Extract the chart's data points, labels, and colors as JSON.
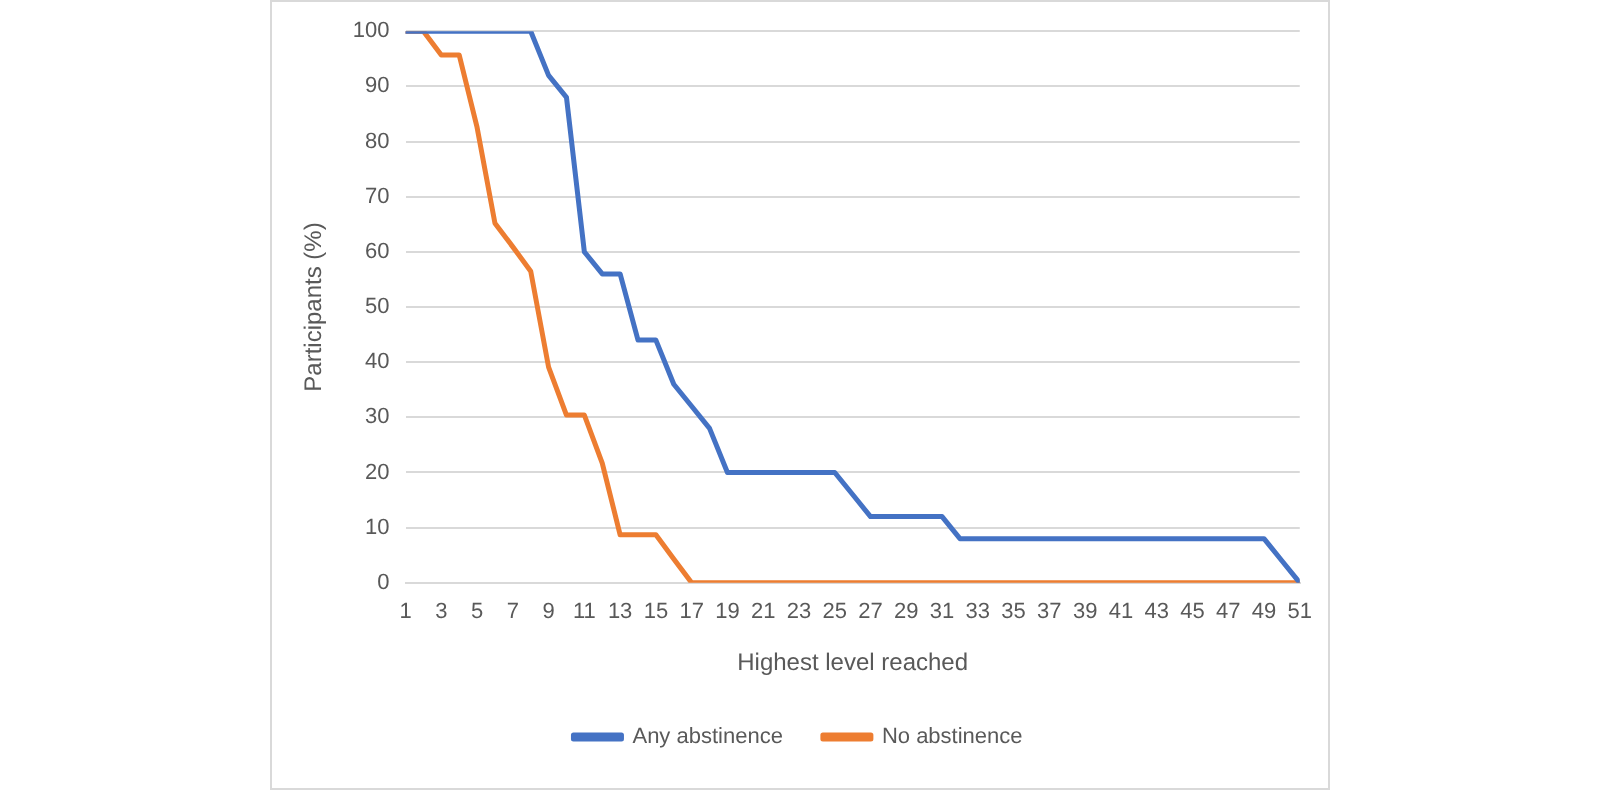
{
  "chart_data": {
    "type": "line",
    "xlabel": "Highest level reached",
    "ylabel": "Participants (%)",
    "x": [
      1,
      2,
      3,
      4,
      5,
      6,
      7,
      8,
      9,
      10,
      11,
      12,
      13,
      14,
      15,
      16,
      17,
      18,
      19,
      20,
      21,
      22,
      23,
      24,
      25,
      26,
      27,
      28,
      29,
      30,
      31,
      32,
      33,
      34,
      35,
      36,
      37,
      38,
      39,
      40,
      41,
      42,
      43,
      44,
      45,
      46,
      47,
      48,
      49,
      50,
      51
    ],
    "xlim": [
      1,
      51
    ],
    "xticks": [
      1,
      3,
      5,
      7,
      9,
      11,
      13,
      15,
      17,
      19,
      21,
      23,
      25,
      27,
      29,
      31,
      33,
      35,
      37,
      39,
      41,
      43,
      45,
      47,
      49,
      51
    ],
    "series": [
      {
        "name": "Any abstinence",
        "color": "#4472c4",
        "values": [
          100,
          100,
          100,
          100,
          100,
          100,
          100,
          100,
          92,
          88,
          60,
          56,
          56,
          44,
          44,
          36,
          32,
          28,
          20,
          20,
          20,
          20,
          20,
          20,
          20,
          16,
          12,
          12,
          12,
          12,
          12,
          8,
          8,
          8,
          8,
          8,
          8,
          8,
          8,
          8,
          8,
          8,
          8,
          8,
          8,
          8,
          8,
          8,
          8,
          4,
          0
        ]
      },
      {
        "name": "No abstinence",
        "color": "#ed7d31",
        "values": [
          100,
          100,
          95.7,
          95.7,
          82.6,
          65.2,
          60.9,
          56.5,
          39.1,
          30.4,
          30.4,
          21.7,
          8.7,
          8.7,
          8.7,
          4.3,
          0,
          0,
          0,
          0,
          0,
          0,
          0,
          0,
          0,
          0,
          0,
          0,
          0,
          0,
          0,
          0,
          0,
          0,
          0,
          0,
          0,
          0,
          0,
          0,
          0,
          0,
          0,
          0,
          0,
          0,
          0,
          0,
          0,
          0,
          0
        ]
      }
    ],
    "ylim": [
      0,
      100
    ],
    "yticks": [
      0,
      10,
      20,
      30,
      40,
      50,
      60,
      70,
      80,
      90,
      100
    ],
    "grid": "y",
    "legend": "bottom",
    "marker": "none",
    "line_style": "solid"
  }
}
